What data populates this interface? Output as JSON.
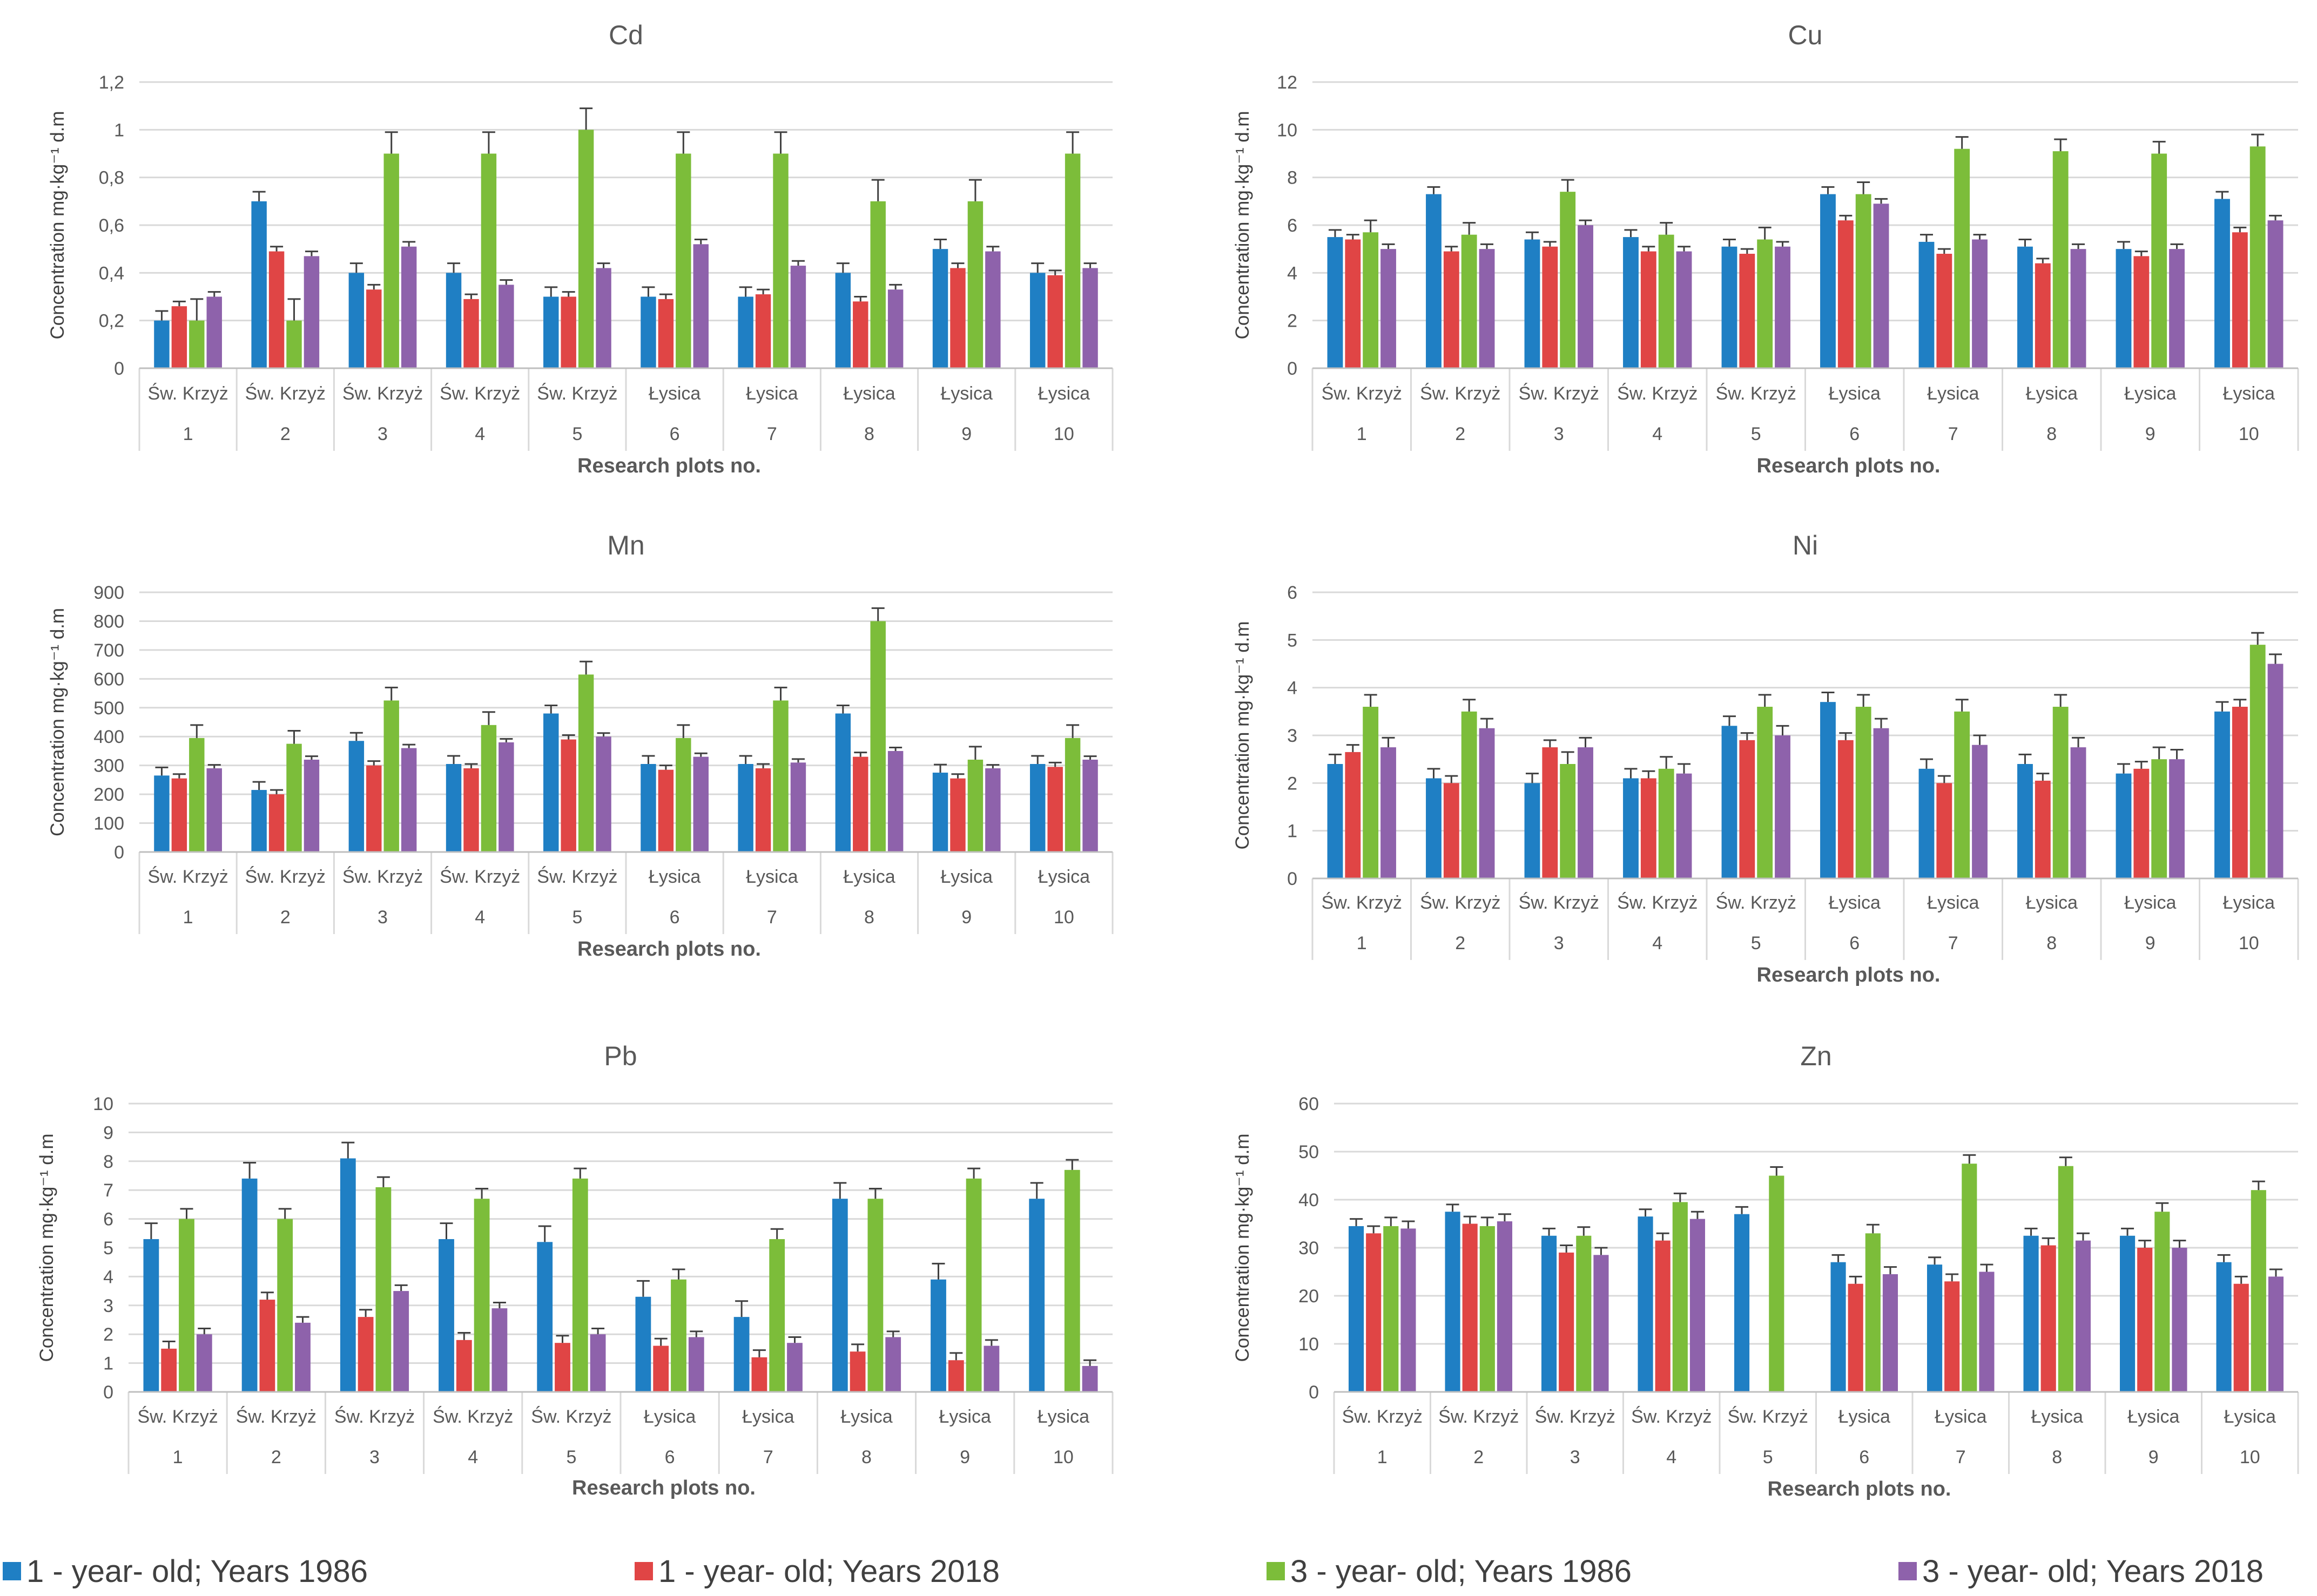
{
  "legend": [
    {
      "label": "1 - year- old; Years 1986",
      "color": "#1f7fc4"
    },
    {
      "label": "1 - year- old; Years 2018",
      "color": "#e04545"
    },
    {
      "label": "3 - year- old; Years 1986",
      "color": "#7cbd3a"
    },
    {
      "label": "3 - year- old; Years 2018",
      "color": "#8e62ab"
    }
  ],
  "chart_data": [
    {
      "type": "bar",
      "title": "Cd",
      "ylabel": "Concentration mg·kg⁻¹ d.m",
      "xlabel": "Research plots no.",
      "ylim": [
        0,
        1.2
      ],
      "yticks": [
        "0",
        "0,2",
        "0,4",
        "0,6",
        "0,8",
        "1",
        "1,2"
      ],
      "categories": [
        "1",
        "2",
        "3",
        "4",
        "5",
        "6",
        "7",
        "8",
        "9",
        "10"
      ],
      "sites": [
        "Św. Krzyż",
        "Św. Krzyż",
        "Św. Krzyż",
        "Św. Krzyż",
        "Św. Krzyż",
        "Łysica",
        "Łysica",
        "Łysica",
        "Łysica",
        "Łysica"
      ],
      "series": [
        {
          "name": "1 - year- old; Years 1986",
          "values": [
            0.2,
            0.7,
            0.4,
            0.4,
            0.3,
            0.3,
            0.3,
            0.4,
            0.5,
            0.4
          ],
          "errors": [
            0.04,
            0.04,
            0.04,
            0.04,
            0.04,
            0.04,
            0.04,
            0.04,
            0.04,
            0.04
          ]
        },
        {
          "name": "1 - year- old; Years 2018",
          "values": [
            0.26,
            0.49,
            0.33,
            0.29,
            0.3,
            0.29,
            0.31,
            0.28,
            0.42,
            0.39
          ],
          "errors": [
            0.02,
            0.02,
            0.02,
            0.02,
            0.02,
            0.02,
            0.02,
            0.02,
            0.02,
            0.02
          ]
        },
        {
          "name": "3 - year- old; Years 1986",
          "values": [
            0.2,
            0.2,
            0.9,
            0.9,
            1.0,
            0.9,
            0.9,
            0.7,
            0.7,
            0.9
          ],
          "errors": [
            0.09,
            0.09,
            0.09,
            0.09,
            0.09,
            0.09,
            0.09,
            0.09,
            0.09,
            0.09
          ]
        },
        {
          "name": "3 - year- old; Years 2018",
          "values": [
            0.3,
            0.47,
            0.51,
            0.35,
            0.42,
            0.52,
            0.43,
            0.33,
            0.49,
            0.42
          ],
          "errors": [
            0.02,
            0.02,
            0.02,
            0.02,
            0.02,
            0.02,
            0.02,
            0.02,
            0.02,
            0.02
          ]
        }
      ]
    },
    {
      "type": "bar",
      "title": "Cu",
      "ylabel": "Concentration mg·kg⁻¹ d.m",
      "xlabel": "Research plots no.",
      "ylim": [
        0,
        12
      ],
      "yticks": [
        "0",
        "2",
        "4",
        "6",
        "8",
        "10",
        "12"
      ],
      "categories": [
        "1",
        "2",
        "3",
        "4",
        "5",
        "6",
        "7",
        "8",
        "9",
        "10"
      ],
      "sites": [
        "Św. Krzyż",
        "Św. Krzyż",
        "Św. Krzyż",
        "Św. Krzyż",
        "Św. Krzyż",
        "Łysica",
        "Łysica",
        "Łysica",
        "Łysica",
        "Łysica"
      ],
      "series": [
        {
          "name": "1 - year- old; Years 1986",
          "values": [
            5.5,
            7.3,
            5.4,
            5.5,
            5.1,
            7.3,
            5.3,
            5.1,
            5.0,
            7.1
          ],
          "errors": [
            0.3,
            0.3,
            0.3,
            0.3,
            0.3,
            0.3,
            0.3,
            0.3,
            0.3,
            0.3
          ]
        },
        {
          "name": "1 - year- old; Years 2018",
          "values": [
            5.4,
            4.9,
            5.1,
            4.9,
            4.8,
            6.2,
            4.8,
            4.4,
            4.7,
            5.7
          ],
          "errors": [
            0.2,
            0.2,
            0.2,
            0.2,
            0.2,
            0.2,
            0.2,
            0.2,
            0.2,
            0.2
          ]
        },
        {
          "name": "3 - year- old; Years 1986",
          "values": [
            5.7,
            5.6,
            7.4,
            5.6,
            5.4,
            7.3,
            9.2,
            9.1,
            9.0,
            9.3
          ],
          "errors": [
            0.5,
            0.5,
            0.5,
            0.5,
            0.5,
            0.5,
            0.5,
            0.5,
            0.5,
            0.5
          ]
        },
        {
          "name": "3 - year- old; Years 2018",
          "values": [
            5.0,
            5.0,
            6.0,
            4.9,
            5.1,
            6.9,
            5.4,
            5.0,
            5.0,
            6.2
          ],
          "errors": [
            0.2,
            0.2,
            0.2,
            0.2,
            0.2,
            0.2,
            0.2,
            0.2,
            0.2,
            0.2
          ]
        }
      ]
    },
    {
      "type": "bar",
      "title": "Mn",
      "ylabel": "Concentration mg·kg⁻¹ d.m",
      "xlabel": "Research plots no.",
      "ylim": [
        0,
        900
      ],
      "yticks": [
        "0",
        "100",
        "200",
        "300",
        "400",
        "500",
        "600",
        "700",
        "800",
        "900"
      ],
      "categories": [
        "1",
        "2",
        "3",
        "4",
        "5",
        "6",
        "7",
        "8",
        "9",
        "10"
      ],
      "sites": [
        "Św. Krzyż",
        "Św. Krzyż",
        "Św. Krzyż",
        "Św. Krzyż",
        "Św. Krzyż",
        "Łysica",
        "Łysica",
        "Łysica",
        "Łysica",
        "Łysica"
      ],
      "series": [
        {
          "name": "1 - year- old; Years 1986",
          "values": [
            265,
            215,
            385,
            305,
            480,
            305,
            305,
            480,
            275,
            305
          ],
          "errors": [
            28,
            28,
            28,
            28,
            28,
            28,
            28,
            28,
            28,
            28
          ]
        },
        {
          "name": "1 - year- old; Years 2018",
          "values": [
            255,
            200,
            300,
            290,
            390,
            285,
            290,
            330,
            255,
            295
          ],
          "errors": [
            15,
            15,
            15,
            15,
            15,
            15,
            15,
            15,
            15,
            15
          ]
        },
        {
          "name": "3 - year- old; Years 1986",
          "values": [
            395,
            375,
            525,
            440,
            615,
            395,
            525,
            800,
            320,
            395
          ],
          "errors": [
            45,
            45,
            45,
            45,
            45,
            45,
            45,
            45,
            45,
            45
          ]
        },
        {
          "name": "3 - year- old; Years 2018",
          "values": [
            290,
            320,
            360,
            380,
            400,
            330,
            310,
            350,
            290,
            320
          ],
          "errors": [
            12,
            12,
            12,
            12,
            12,
            12,
            12,
            12,
            12,
            12
          ]
        }
      ]
    },
    {
      "type": "bar",
      "title": "Ni",
      "ylabel": "Concentration mg·kg⁻¹ d.m",
      "xlabel": "Research plots no.",
      "ylim": [
        0,
        6
      ],
      "yticks": [
        "0",
        "1",
        "2",
        "3",
        "4",
        "5",
        "6"
      ],
      "categories": [
        "1",
        "2",
        "3",
        "4",
        "5",
        "6",
        "7",
        "8",
        "9",
        "10"
      ],
      "sites": [
        "Św. Krzyż",
        "Św. Krzyż",
        "Św. Krzyż",
        "Św. Krzyż",
        "Św. Krzyż",
        "Łysica",
        "Łysica",
        "Łysica",
        "Łysica",
        "Łysica"
      ],
      "series": [
        {
          "name": "1 - year- old; Years 1986",
          "values": [
            2.4,
            2.1,
            2.0,
            2.1,
            3.2,
            3.7,
            2.3,
            2.4,
            2.2,
            3.5
          ],
          "errors": [
            0.2,
            0.2,
            0.2,
            0.2,
            0.2,
            0.2,
            0.2,
            0.2,
            0.2,
            0.2
          ]
        },
        {
          "name": "1 - year- old; Years 2018",
          "values": [
            2.65,
            2.0,
            2.75,
            2.1,
            2.9,
            2.9,
            2.0,
            2.05,
            2.3,
            3.6
          ],
          "errors": [
            0.15,
            0.15,
            0.15,
            0.15,
            0.15,
            0.15,
            0.15,
            0.15,
            0.15,
            0.15
          ]
        },
        {
          "name": "3 - year- old; Years 1986",
          "values": [
            3.6,
            3.5,
            2.4,
            2.3,
            3.6,
            3.6,
            3.5,
            3.6,
            2.5,
            4.9
          ],
          "errors": [
            0.25,
            0.25,
            0.25,
            0.25,
            0.25,
            0.25,
            0.25,
            0.25,
            0.25,
            0.25
          ]
        },
        {
          "name": "3 - year- old; Years 2018",
          "values": [
            2.75,
            3.15,
            2.75,
            2.2,
            3.0,
            3.15,
            2.8,
            2.75,
            2.5,
            4.5
          ],
          "errors": [
            0.2,
            0.2,
            0.2,
            0.2,
            0.2,
            0.2,
            0.2,
            0.2,
            0.2,
            0.2
          ]
        }
      ]
    },
    {
      "type": "bar",
      "title": "Pb",
      "ylabel": "Concentration mg·kg⁻¹ d.m",
      "xlabel": "Research plots no.",
      "ylim": [
        0,
        10
      ],
      "yticks": [
        "0",
        "1",
        "2",
        "3",
        "4",
        "5",
        "6",
        "7",
        "8",
        "9",
        "10"
      ],
      "categories": [
        "1",
        "2",
        "3",
        "4",
        "5",
        "6",
        "7",
        "8",
        "9",
        "10"
      ],
      "sites": [
        "Św. Krzyż",
        "Św. Krzyż",
        "Św. Krzyż",
        "Św. Krzyż",
        "Św. Krzyż",
        "Łysica",
        "Łysica",
        "Łysica",
        "Łysica",
        "Łysica"
      ],
      "series": [
        {
          "name": "1 - year- old; Years 1986",
          "values": [
            5.3,
            7.4,
            8.1,
            5.3,
            5.2,
            3.3,
            2.6,
            6.7,
            3.9,
            6.7
          ],
          "errors": [
            0.55,
            0.55,
            0.55,
            0.55,
            0.55,
            0.55,
            0.55,
            0.55,
            0.55,
            0.55
          ]
        },
        {
          "name": "1 - year- old; Years 2018",
          "values": [
            1.5,
            3.2,
            2.6,
            1.8,
            1.7,
            1.6,
            1.2,
            1.4,
            1.1,
            0
          ],
          "errors": [
            0.25,
            0.25,
            0.25,
            0.25,
            0.25,
            0.25,
            0.25,
            0.25,
            0.25,
            0
          ]
        },
        {
          "name": "3 - year- old; Years 1986",
          "values": [
            6.0,
            6.0,
            7.1,
            6.7,
            7.4,
            3.9,
            5.3,
            6.7,
            7.4,
            7.7
          ],
          "errors": [
            0.35,
            0.35,
            0.35,
            0.35,
            0.35,
            0.35,
            0.35,
            0.35,
            0.35,
            0.35
          ]
        },
        {
          "name": "3 - year- old; Years 2018",
          "values": [
            2.0,
            2.4,
            3.5,
            2.9,
            2.0,
            1.9,
            1.7,
            1.9,
            1.6,
            0.9
          ],
          "errors": [
            0.2,
            0.2,
            0.2,
            0.2,
            0.2,
            0.2,
            0.2,
            0.2,
            0.2,
            0.2
          ]
        }
      ]
    },
    {
      "type": "bar",
      "title": "Zn",
      "ylabel": "Concentration mg·kg⁻¹ d.m",
      "xlabel": "Research plots no.",
      "ylim": [
        0,
        60
      ],
      "yticks": [
        "0",
        "10",
        "20",
        "30",
        "40",
        "50",
        "60"
      ],
      "categories": [
        "1",
        "2",
        "3",
        "4",
        "5",
        "6",
        "7",
        "8",
        "9",
        "10"
      ],
      "sites": [
        "Św. Krzyż",
        "Św. Krzyż",
        "Św. Krzyż",
        "Św. Krzyż",
        "Św. Krzyż",
        "Łysica",
        "Łysica",
        "Łysica",
        "Łysica",
        "Łysica"
      ],
      "series": [
        {
          "name": "1 - year- old; Years 1986",
          "values": [
            34.5,
            37.5,
            32.5,
            36.5,
            37,
            27,
            26.5,
            32.5,
            32.5,
            27
          ],
          "errors": [
            1.5,
            1.5,
            1.5,
            1.5,
            1.5,
            1.5,
            1.5,
            1.5,
            1.5,
            1.5
          ]
        },
        {
          "name": "1 - year- old; Years 2018",
          "values": [
            33,
            35,
            29,
            31.5,
            0,
            22.5,
            23,
            30.5,
            30,
            22.5
          ],
          "errors": [
            1.5,
            1.5,
            1.5,
            1.5,
            0,
            1.5,
            1.5,
            1.5,
            1.5,
            1.5
          ]
        },
        {
          "name": "3 - year- old; Years 1986",
          "values": [
            34.5,
            34.5,
            32.5,
            39.5,
            45,
            33,
            47.5,
            47,
            37.5,
            42
          ],
          "errors": [
            1.8,
            1.8,
            1.8,
            1.8,
            1.8,
            1.8,
            1.8,
            1.8,
            1.8,
            1.8
          ]
        },
        {
          "name": "3 - year- old; Years 2018",
          "values": [
            34,
            35.5,
            28.5,
            36,
            0,
            24.5,
            25,
            31.5,
            30,
            24
          ],
          "errors": [
            1.5,
            1.5,
            1.5,
            1.5,
            0,
            1.5,
            1.5,
            1.5,
            1.5,
            1.5
          ]
        }
      ]
    }
  ]
}
